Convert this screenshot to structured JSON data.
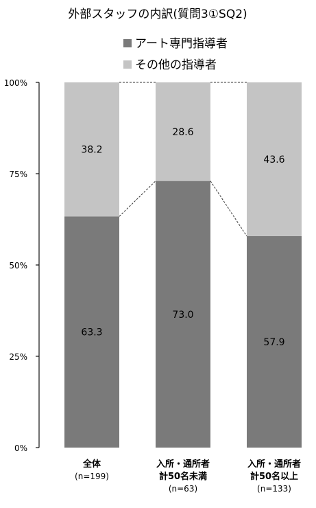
{
  "chart_data": {
    "type": "bar",
    "stacked": "percent",
    "title": "外部スタッフの内訳(質問3①SQ2)",
    "categories": [
      [
        "全体",
        "(n=199)"
      ],
      [
        "入所・通所者",
        "計50名未満",
        "(n=63)"
      ],
      [
        "入所・通所者",
        "計50名以上",
        "(n=133)"
      ]
    ],
    "series": [
      {
        "name": "アート専門指導者",
        "values": [
          63.3,
          73.0,
          57.9
        ],
        "labels": [
          "63.3",
          "73.0",
          "57.9"
        ],
        "color": "#7a7a7a"
      },
      {
        "name": "その他の指導者",
        "values": [
          38.2,
          28.6,
          43.6
        ],
        "labels": [
          "38.2",
          "28.6",
          "43.6"
        ],
        "color": "#c4c4c4"
      }
    ],
    "ylim": [
      0,
      100
    ],
    "yticks": [
      "0%",
      "25%",
      "50%",
      "75%",
      "100%"
    ],
    "legend_position": "top",
    "connector_lines": "dashed",
    "grid": false
  }
}
